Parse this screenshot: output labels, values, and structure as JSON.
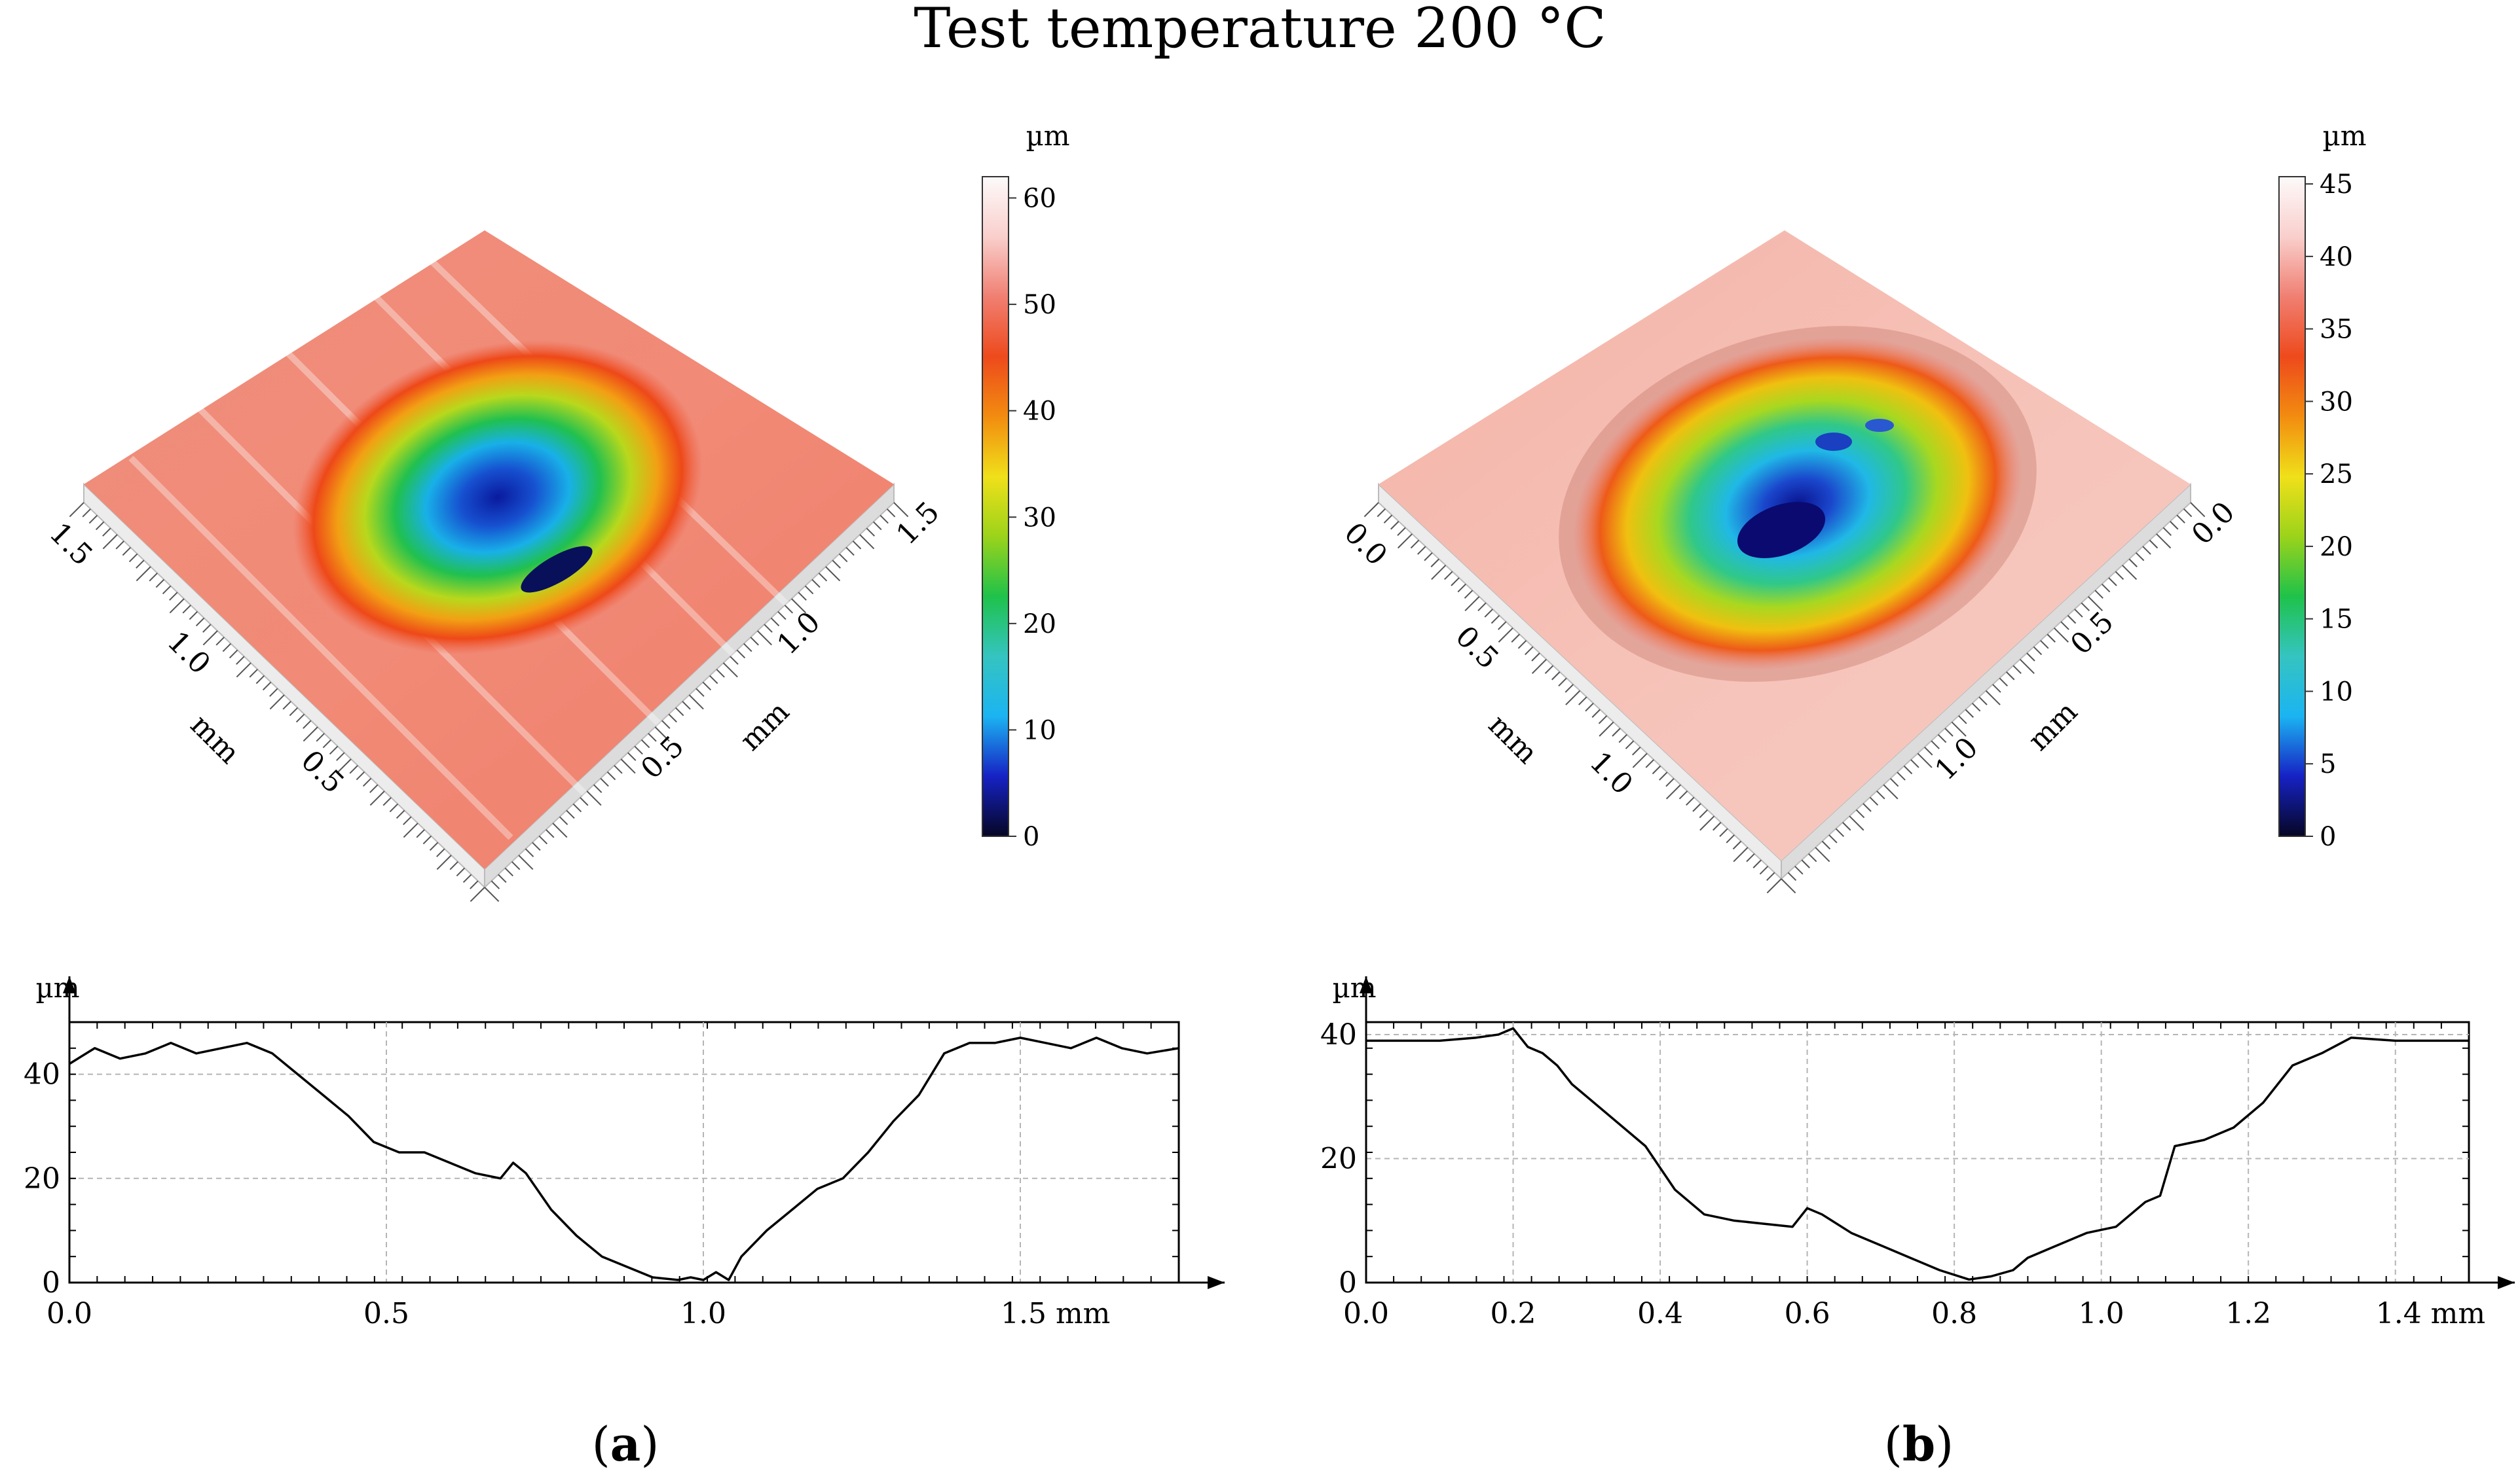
{
  "figure": {
    "title": "Test temperature 200 °C",
    "colors": {
      "line": "#000000",
      "grid": "#b5b5b5",
      "plate_side": "#e9e9e9",
      "scale_stops": [
        "#060624",
        "#1622c4",
        "#1bb4f2",
        "#35c4c0",
        "#1fc24a",
        "#9cd31a",
        "#f0e01a",
        "#f28c10",
        "#ee4a1c",
        "#f07f72",
        "#f9cfcc",
        "#fdfafa"
      ]
    }
  },
  "panels": [
    {
      "id": "a",
      "label": "a",
      "surface": {
        "colorbar": {
          "unit": "µm",
          "ticks": [
            "0",
            "10",
            "20",
            "30",
            "40",
            "50",
            "60"
          ],
          "min": 0,
          "max": 62
        },
        "left_axis": {
          "label": "mm",
          "ticks": [
            "1.5",
            "1.0",
            "0.5"
          ]
        },
        "right_axis": {
          "label": "mm",
          "ticks": [
            "0.5",
            "1.0",
            "1.5"
          ]
        }
      },
      "chart_data": {
        "type": "line",
        "title": "",
        "xlabel": "mm",
        "ylabel": "µm",
        "xlim": [
          0,
          1.75
        ],
        "ylim": [
          0,
          50
        ],
        "xticks": [
          0,
          0.5,
          1.0,
          1.5
        ],
        "xtick_labels": [
          "0.0",
          "0.5",
          "1.0",
          "1.5 mm"
        ],
        "yticks": [
          0,
          20,
          40
        ],
        "ytick_labels": [
          "0",
          "20",
          "40"
        ],
        "x": [
          0,
          0.04,
          0.08,
          0.12,
          0.16,
          0.2,
          0.24,
          0.28,
          0.32,
          0.36,
          0.4,
          0.44,
          0.48,
          0.52,
          0.56,
          0.6,
          0.64,
          0.68,
          0.7,
          0.72,
          0.76,
          0.8,
          0.84,
          0.88,
          0.92,
          0.96,
          0.98,
          1.0,
          1.02,
          1.04,
          1.06,
          1.1,
          1.14,
          1.18,
          1.22,
          1.26,
          1.3,
          1.34,
          1.38,
          1.42,
          1.46,
          1.5,
          1.54,
          1.58,
          1.62,
          1.66,
          1.7,
          1.75
        ],
        "y": [
          42,
          45,
          43,
          44,
          46,
          44,
          45,
          46,
          44,
          40,
          36,
          32,
          27,
          25,
          25,
          23,
          21,
          20,
          23,
          21,
          14,
          9,
          5,
          3,
          1,
          0.5,
          1,
          0.5,
          2,
          0.5,
          5,
          10,
          14,
          18,
          20,
          25,
          31,
          36,
          44,
          46,
          46,
          47,
          46,
          45,
          47,
          45,
          44,
          45
        ]
      }
    },
    {
      "id": "b",
      "label": "b",
      "surface": {
        "colorbar": {
          "unit": "µm",
          "ticks": [
            "0",
            "5",
            "10",
            "15",
            "20",
            "25",
            "30",
            "35",
            "40",
            "45"
          ],
          "min": 0,
          "max": 45.5
        },
        "left_axis": {
          "label": "mm",
          "ticks": [
            "0.0",
            "0.5",
            "1.0"
          ]
        },
        "right_axis": {
          "label": "mm",
          "ticks": [
            "1.0",
            "0.5",
            "0.0"
          ]
        }
      },
      "chart_data": {
        "type": "line",
        "title": "",
        "xlabel": "mm",
        "ylabel": "µm",
        "xlim": [
          0,
          1.5
        ],
        "ylim": [
          0,
          42
        ],
        "xticks": [
          0,
          0.2,
          0.4,
          0.6,
          0.8,
          1.0,
          1.2,
          1.4
        ],
        "xtick_labels": [
          "0.0",
          "0.2",
          "0.4",
          "0.6",
          "0.8",
          "1.0",
          "1.2",
          "1.4 mm"
        ],
        "yticks": [
          0,
          20,
          40
        ],
        "ytick_labels": [
          "0",
          "20",
          "40"
        ],
        "x": [
          0,
          0.05,
          0.1,
          0.15,
          0.18,
          0.2,
          0.22,
          0.24,
          0.26,
          0.28,
          0.3,
          0.34,
          0.38,
          0.42,
          0.46,
          0.5,
          0.54,
          0.58,
          0.6,
          0.62,
          0.66,
          0.7,
          0.74,
          0.78,
          0.82,
          0.85,
          0.88,
          0.9,
          0.94,
          0.98,
          1.02,
          1.06,
          1.08,
          1.1,
          1.14,
          1.18,
          1.22,
          1.26,
          1.3,
          1.34,
          1.4,
          1.45,
          1.5
        ],
        "y": [
          39,
          39,
          39,
          39.5,
          40,
          41,
          38,
          37,
          35,
          32,
          30,
          26,
          22,
          15,
          11,
          10,
          9.5,
          9,
          12,
          11,
          8,
          6,
          4,
          2,
          0.5,
          1,
          2,
          4,
          6,
          8,
          9,
          13,
          14,
          22,
          23,
          25,
          29,
          35,
          37,
          39.5,
          39,
          39,
          39
        ]
      }
    }
  ]
}
